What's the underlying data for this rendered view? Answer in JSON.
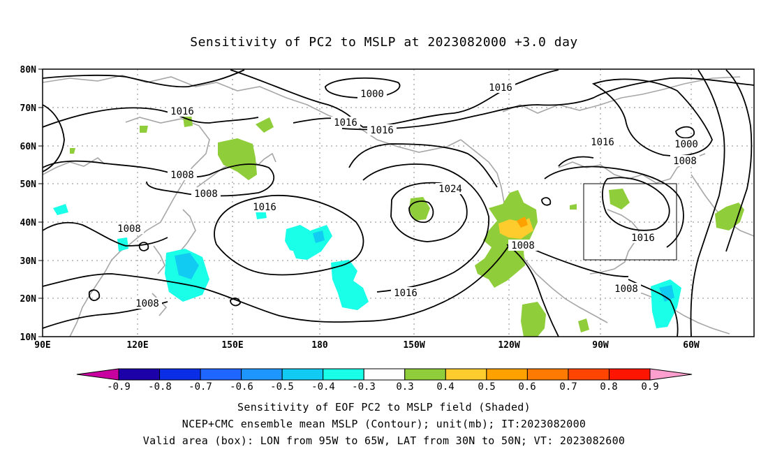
{
  "title": "Sensitivity of PC2 to MSLP at 2023082000 +3.0 day",
  "map": {
    "lat_labels": [
      "80N",
      "70N",
      "60N",
      "50N",
      "40N",
      "30N",
      "20N",
      "10N"
    ],
    "lon_labels": [
      "90E",
      "120E",
      "150E",
      "180",
      "150W",
      "120W",
      "90W",
      "60W"
    ],
    "contour_labels": [
      "1000",
      "1016",
      "1016",
      "1016",
      "1016",
      "1024",
      "1000",
      "1008",
      "1016",
      "1008",
      "1008",
      "1016",
      "1008",
      "1008",
      "1016",
      "1008",
      "1008"
    ],
    "box": {
      "lon_from": "95W",
      "lon_to": "65W",
      "lat_from": "30N",
      "lat_to": "50N"
    }
  },
  "colorbar": {
    "labels": [
      "-0.9",
      "-0.8",
      "-0.7",
      "-0.6",
      "-0.5",
      "-0.4",
      "-0.3",
      "0.3",
      "0.4",
      "0.5",
      "0.6",
      "0.7",
      "0.8",
      "0.9"
    ],
    "colors": [
      "#1c00a8",
      "#0a2ee6",
      "#1e66ff",
      "#1e96ff",
      "#11cbf2",
      "#19ffe8",
      "#ffffff",
      "#8fcd3a",
      "#ffcc2e",
      "#ffa200",
      "#ff7a00",
      "#ff4500",
      "#ff1500"
    ],
    "low_color": "#c800a0",
    "high_color": "#ff9fd0"
  },
  "captions": [
    "Sensitivity of EOF PC2 to MSLP field (Shaded)",
    "NCEP+CMC ensemble mean MSLP (Contour); unit(mb); IT:2023082000",
    "Valid area (box): LON from 95W to 65W, LAT from 30N to 50N; VT: 2023082600"
  ]
}
